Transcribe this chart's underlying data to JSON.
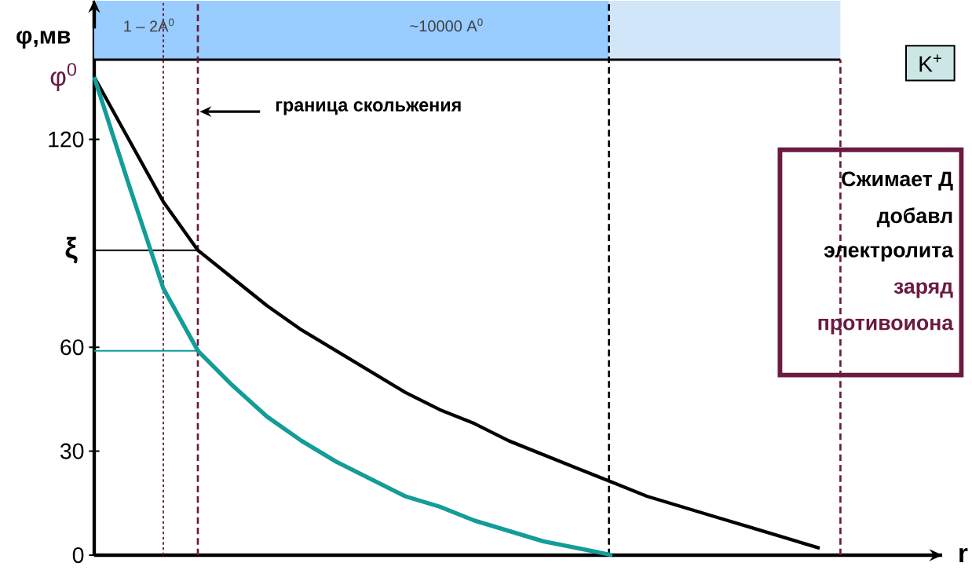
{
  "chart_data": {
    "type": "line",
    "ylabel": "φ,мв",
    "categories": [
      null,
      null,
      null,
      null,
      null,
      null,
      null,
      null,
      null,
      null,
      null,
      null,
      null,
      null,
      null,
      null,
      null,
      null,
      null,
      null,
      null,
      null
    ],
    "series": [
      {
        "color": "#000000",
        "values": [
          138,
          120,
          102,
          88,
          80,
          72,
          65,
          59,
          53,
          47,
          42,
          38,
          33,
          29,
          25,
          21,
          17,
          14,
          11,
          8,
          5,
          2
        ]
      },
      {
        "color": "#139c98",
        "values": [
          138,
          107,
          77,
          59,
          49,
          40,
          33,
          27,
          22,
          17,
          14,
          10,
          7,
          4,
          2,
          0,
          null,
          null,
          null,
          null,
          null,
          null
        ]
      }
    ],
    "ylim": [
      0,
      160
    ],
    "yticks": [
      0,
      30,
      60,
      120
    ],
    "tick_labels": "y",
    "ref_lines": [
      {
        "axis": "y",
        "value": 88,
        "color": "#000000"
      },
      {
        "axis": "y",
        "value": 59,
        "color": "#139c98"
      }
    ],
    "annotations": [
      "1 – 2A$^{0}$",
      "~10000 A$^{0}$",
      "K$^{+}$",
      "граница скольжения",
      "Сжимает Д",
      "добавл",
      "электролита",
      "заряд",
      "противоиона",
      "ξ",
      "φ$^{0}$",
      "r"
    ]
  }
}
